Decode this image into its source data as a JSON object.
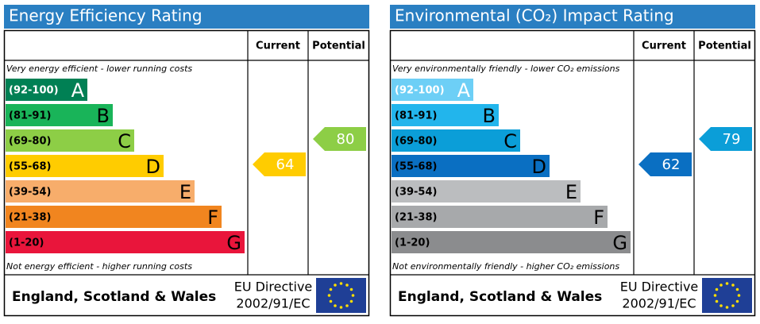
{
  "panels": [
    {
      "title": "Energy Efficiency Rating",
      "current_header": "Current",
      "potential_header": "Potential",
      "top_note": "Very energy efficient - lower running costs",
      "bottom_note": "Not energy efficient - higher running costs",
      "bands": [
        {
          "range": "(92-100)",
          "letter": "A",
          "color": "#008054"
        },
        {
          "range": "(81-91)",
          "letter": "B",
          "color": "#19b459"
        },
        {
          "range": "(69-80)",
          "letter": "C",
          "color": "#8dce46"
        },
        {
          "range": "(55-68)",
          "letter": "D",
          "color": "#ffcc00"
        },
        {
          "range": "(39-54)",
          "letter": "E",
          "color": "#f7ad6b"
        },
        {
          "range": "(21-38)",
          "letter": "F",
          "color": "#f1851f"
        },
        {
          "range": "(1-20)",
          "letter": "G",
          "color": "#e9153b"
        }
      ],
      "current": 64,
      "potential": 80,
      "footer": {
        "region": "England, Scotland & Wales",
        "directive_1": "EU Directive",
        "directive_2": "2002/91/EC"
      }
    },
    {
      "title": "Environmental (CO₂) Impact Rating",
      "current_header": "Current",
      "potential_header": "Potential",
      "top_note": "Very environmentally friendly - lower CO₂ emissions",
      "bottom_note": "Not environmentally friendly - higher CO₂ emissions",
      "bands": [
        {
          "range": "(92-100)",
          "letter": "A",
          "color": "#6dcff6"
        },
        {
          "range": "(81-91)",
          "letter": "B",
          "color": "#22b5ec"
        },
        {
          "range": "(69-80)",
          "letter": "C",
          "color": "#0b9ed8"
        },
        {
          "range": "(55-68)",
          "letter": "D",
          "color": "#0a6fc2"
        },
        {
          "range": "(39-54)",
          "letter": "E",
          "color": "#bbbdbf"
        },
        {
          "range": "(21-38)",
          "letter": "F",
          "color": "#a7a9ab"
        },
        {
          "range": "(1-20)",
          "letter": "G",
          "color": "#8b8c8e"
        }
      ],
      "current": 62,
      "potential": 79,
      "footer": {
        "region": "England, Scotland & Wales",
        "directive_1": "EU Directive",
        "directive_2": "2002/91/EC"
      }
    }
  ]
}
